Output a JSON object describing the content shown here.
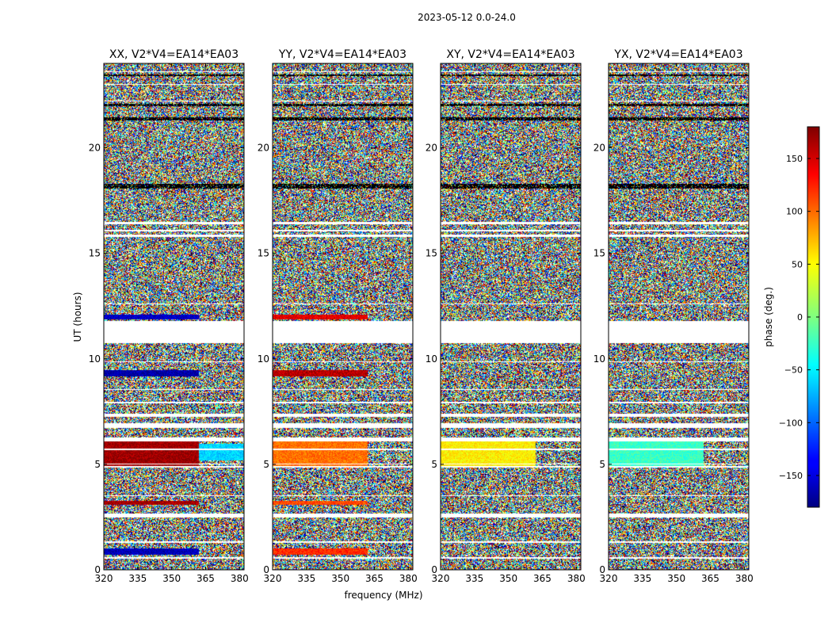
{
  "chart_data": {
    "type": "heatmap",
    "suptitle": "2023-05-12 0.0-24.0",
    "xlabel": "frequency (MHz)",
    "ylabel": "UT (hours)",
    "xlim": [
      320,
      382
    ],
    "ylim": [
      0,
      24
    ],
    "xticks": [
      320,
      335,
      350,
      365,
      380
    ],
    "yticks": [
      0,
      5,
      10,
      15,
      20
    ],
    "panels": [
      {
        "title": "XX, V2*V4=EA14*EA03",
        "pol": "XX"
      },
      {
        "title": "YY, V2*V4=EA14*EA03",
        "pol": "YY"
      },
      {
        "title": "XY, V2*V4=EA14*EA03",
        "pol": "XY"
      },
      {
        "title": "YX, V2*V4=EA14*EA03",
        "pol": "YX"
      }
    ],
    "colorbar": {
      "label": "phase (deg.)",
      "range": [
        -180,
        180
      ],
      "ticks": [
        -150,
        -100,
        -50,
        0,
        50,
        100,
        150
      ],
      "colormap": "jet"
    },
    "flagged_ut_gaps": [
      [
        0.55,
        0.62
      ],
      [
        1.3,
        1.36
      ],
      [
        2.5,
        2.7
      ],
      [
        3.5,
        3.55
      ],
      [
        4.85,
        4.95
      ],
      [
        5.0,
        5.05
      ],
      [
        5.7,
        5.75
      ],
      [
        6.1,
        6.3
      ],
      [
        6.75,
        6.95
      ],
      [
        7.25,
        7.4
      ],
      [
        7.9,
        7.98
      ],
      [
        8.55,
        8.6
      ],
      [
        9.85,
        9.9
      ],
      [
        10.75,
        11.8
      ],
      [
        12.6,
        12.65
      ],
      [
        15.8,
        15.9
      ],
      [
        16.05,
        16.15
      ],
      [
        16.4,
        16.5
      ],
      [
        22.2,
        22.25
      ],
      [
        23.0,
        23.05
      ],
      [
        23.6,
        23.65
      ]
    ],
    "black_ut_bands": [
      [
        21.3,
        21.45
      ],
      [
        18.1,
        18.3
      ],
      [
        22.0,
        22.1
      ],
      [
        23.4,
        23.48
      ]
    ],
    "coherent_segments": {
      "XX": [
        {
          "ut": [
            0.72,
            1.05
          ],
          "freq": [
            320,
            362
          ],
          "phase": -160
        },
        {
          "ut": [
            4.85,
            6.1
          ],
          "freq": [
            320,
            362
          ],
          "phase": 170
        },
        {
          "ut": [
            5.2,
            6.0
          ],
          "freq": [
            362,
            382
          ],
          "phase": -60
        },
        {
          "ut": [
            3.1,
            3.3
          ],
          "freq": [
            320,
            362
          ],
          "phase": 165
        },
        {
          "ut": [
            9.2,
            9.5
          ],
          "freq": [
            320,
            362
          ],
          "phase": -165
        },
        {
          "ut": [
            11.9,
            12.1
          ],
          "freq": [
            320,
            362
          ],
          "phase": -155
        }
      ],
      "YY": [
        {
          "ut": [
            0.72,
            1.05
          ],
          "freq": [
            320,
            362
          ],
          "phase": 120
        },
        {
          "ut": [
            4.85,
            6.1
          ],
          "freq": [
            320,
            362
          ],
          "phase": 95
        },
        {
          "ut": [
            3.1,
            3.3
          ],
          "freq": [
            320,
            362
          ],
          "phase": 110
        },
        {
          "ut": [
            9.2,
            9.5
          ],
          "freq": [
            320,
            362
          ],
          "phase": 160
        },
        {
          "ut": [
            11.9,
            12.1
          ],
          "freq": [
            320,
            362
          ],
          "phase": 145
        }
      ],
      "XY": [
        {
          "ut": [
            4.85,
            6.1
          ],
          "freq": [
            320,
            362
          ],
          "phase": 50
        }
      ],
      "YX": [
        {
          "ut": [
            4.85,
            6.1
          ],
          "freq": [
            320,
            362
          ],
          "phase": -25
        }
      ]
    }
  }
}
